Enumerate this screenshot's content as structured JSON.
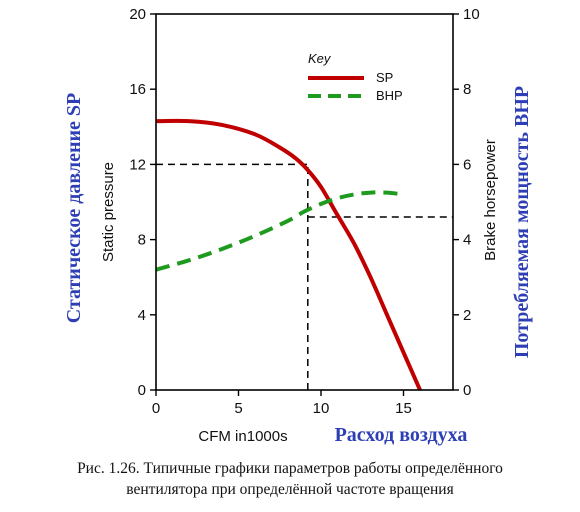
{
  "chart_data": {
    "type": "line",
    "x_label": "CFM in1000s",
    "x_label_ru": "Расход воздуха",
    "y_left_label": "Static pressure",
    "y_left_label_ru": "Статическое давление SP",
    "y_right_label": "Brake horsepower",
    "y_right_label_ru": "Потребляемая мощность BHP",
    "x_range": [
      0,
      18
    ],
    "y_left_range": [
      0,
      20
    ],
    "y_right_range": [
      0,
      10
    ],
    "x_ticks": [
      0,
      5,
      10,
      15
    ],
    "y_left_ticks": [
      0,
      4,
      8,
      12,
      16,
      20
    ],
    "y_right_ticks": [
      0,
      2,
      4,
      6,
      8,
      10
    ],
    "legend": {
      "title": "Key",
      "position": "top-right"
    },
    "series": [
      {
        "name": "SP",
        "axis": "left",
        "color": "#c00000",
        "style": "solid",
        "x": [
          0,
          2,
          4,
          6,
          7.5,
          8.5,
          9.2,
          10,
          11,
          12,
          13,
          14,
          15,
          16
        ],
        "y": [
          14.3,
          14.3,
          14.1,
          13.6,
          12.9,
          12.3,
          11.7,
          10.8,
          9.3,
          7.8,
          6.0,
          4.0,
          2.0,
          0
        ]
      },
      {
        "name": "BHP",
        "axis": "right",
        "color": "#1e9a1e",
        "style": "dashed",
        "x": [
          0,
          2,
          4,
          6,
          8,
          9,
          10,
          11,
          12,
          13,
          14,
          15
        ],
        "y": [
          3.2,
          3.45,
          3.75,
          4.1,
          4.5,
          4.75,
          4.95,
          5.1,
          5.2,
          5.25,
          5.25,
          5.2
        ]
      }
    ],
    "reference_lines": [
      {
        "x": 9.2,
        "y_left": 12.0,
        "y_right": 4.6,
        "color": "#000000",
        "style": "dashed"
      }
    ]
  },
  "caption": {
    "line1": "Рис. 1.26. Типичные графики параметров работы определённого",
    "line2": "вентилятора при определённой частоте вращения"
  },
  "colors": {
    "ru_titles": "#2e3fb5"
  }
}
